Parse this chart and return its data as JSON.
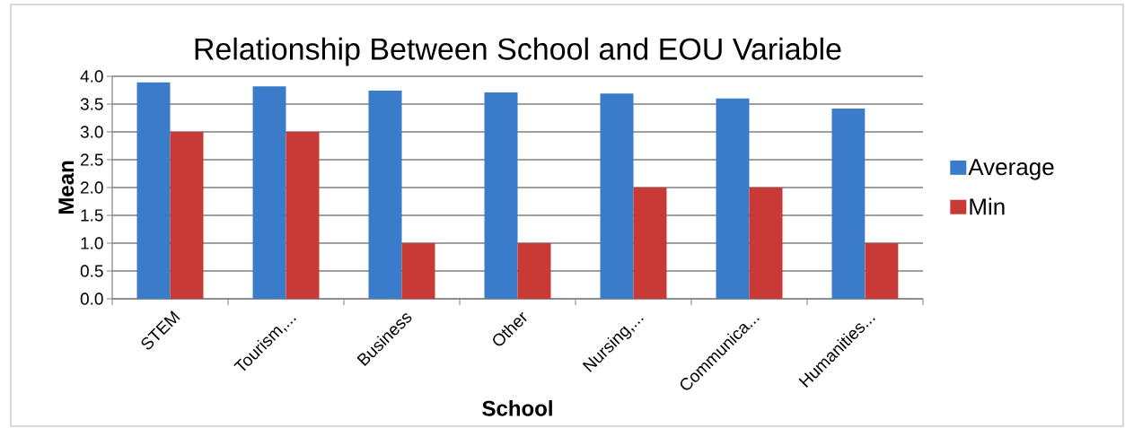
{
  "chart_data": {
    "type": "bar",
    "title": "Relationship Between School and EOU Variable",
    "xlabel": "School",
    "ylabel": "Mean",
    "categories": [
      "STEM",
      "Tourism,...",
      "Business",
      "Other",
      "Nursing,...",
      "Communica...",
      "Humanities..."
    ],
    "series": [
      {
        "name": "Average",
        "color": "#3a7cc9",
        "values": [
          3.89,
          3.82,
          3.74,
          3.71,
          3.69,
          3.6,
          3.42
        ]
      },
      {
        "name": "Min",
        "color": "#c93a36",
        "values": [
          3,
          3,
          1,
          1,
          2,
          2,
          1
        ]
      }
    ],
    "ylim": [
      0,
      4
    ],
    "yticks": [
      {
        "value": 0,
        "label": "0.0"
      },
      {
        "value": 0.5,
        "label": "0.5"
      },
      {
        "value": 1,
        "label": "1.0"
      },
      {
        "value": 1.5,
        "label": "1.5"
      },
      {
        "value": 2,
        "label": "2.0"
      },
      {
        "value": 2.5,
        "label": "2.5"
      },
      {
        "value": 3,
        "label": "3.0"
      },
      {
        "value": 3.5,
        "label": "3.5"
      },
      {
        "value": 4,
        "label": "4.0"
      }
    ],
    "grid": "y",
    "legend": "right"
  }
}
